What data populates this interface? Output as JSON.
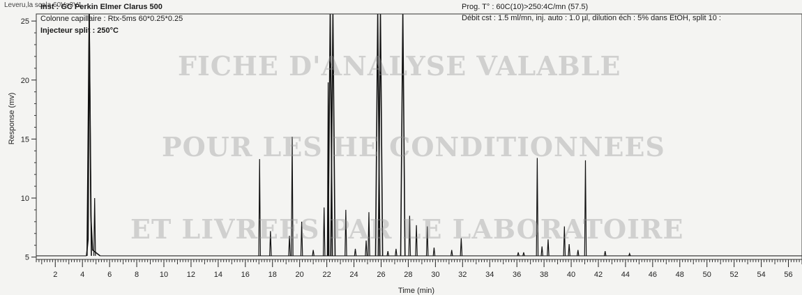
{
  "corner_label": "Leveru,la scala 60V=3V1",
  "header_left": [
    "Inst : GC Perkin Elmer Clarus 500",
    "Colonne capillaire : Rtx-5ms 60*0.25*0.25",
    "Injecteur split : 250°C"
  ],
  "header_right": [
    "Prog. T° : 60C(10)>250:4C/mn (57.5)",
    "Débit cst : 1.5 ml/mn, inj. auto : 1.0 µl, dilution éch : 5% dans EtOH, split 10 :"
  ],
  "watermark": [
    "FICHE D'ANALYSE VALABLE",
    "POUR LES HE CONDITIONNEES",
    "ET LIVREES PAR LE LABORATOIRE"
  ],
  "chart_data": {
    "type": "line",
    "xlabel": "Time (min)",
    "ylabel": "Response (mv)",
    "xlim": [
      0.6,
      57
    ],
    "ylim": [
      4.8,
      25.6
    ],
    "xticks": [
      2,
      4,
      6,
      8,
      10,
      12,
      14,
      16,
      18,
      20,
      22,
      24,
      26,
      28,
      30,
      32,
      34,
      36,
      38,
      40,
      42,
      44,
      46,
      48,
      50,
      52,
      54,
      56
    ],
    "xtick_labels": [
      "2",
      "4",
      "6",
      "8",
      "10",
      "12",
      "14",
      "16",
      "18",
      "20",
      "22",
      "24",
      "26",
      "28",
      "30",
      "32",
      "34",
      "36",
      "38",
      "40",
      "42",
      "44",
      "46",
      "48",
      "50",
      "52",
      "54",
      "56"
    ],
    "yticks": [
      5,
      10,
      15,
      20,
      25
    ],
    "ytick_labels": [
      "5",
      "10",
      "15",
      "20",
      "25"
    ],
    "baseline": 5.1,
    "peaks": [
      {
        "x": 4.5,
        "y": 26
      },
      {
        "x": 4.9,
        "y": 10
      },
      {
        "x": 17.05,
        "y": 13.3
      },
      {
        "x": 17.85,
        "y": 7.2
      },
      {
        "x": 19.25,
        "y": 6.8
      },
      {
        "x": 19.45,
        "y": 15.2
      },
      {
        "x": 20.15,
        "y": 8.0
      },
      {
        "x": 21.0,
        "y": 5.6
      },
      {
        "x": 21.8,
        "y": 9.2
      },
      {
        "x": 22.1,
        "y": 19.8
      },
      {
        "x": 22.25,
        "y": 26
      },
      {
        "x": 22.45,
        "y": 26
      },
      {
        "x": 23.4,
        "y": 9.0
      },
      {
        "x": 24.1,
        "y": 5.7
      },
      {
        "x": 24.9,
        "y": 6.4
      },
      {
        "x": 25.1,
        "y": 8.8
      },
      {
        "x": 25.75,
        "y": 26
      },
      {
        "x": 25.95,
        "y": 26
      },
      {
        "x": 26.5,
        "y": 5.5
      },
      {
        "x": 27.1,
        "y": 5.7
      },
      {
        "x": 27.6,
        "y": 26
      },
      {
        "x": 28.1,
        "y": 8.5
      },
      {
        "x": 28.6,
        "y": 7.7
      },
      {
        "x": 29.4,
        "y": 7.6
      },
      {
        "x": 29.9,
        "y": 5.8
      },
      {
        "x": 31.2,
        "y": 5.6
      },
      {
        "x": 31.9,
        "y": 6.6
      },
      {
        "x": 36.1,
        "y": 5.4
      },
      {
        "x": 36.5,
        "y": 5.4
      },
      {
        "x": 37.5,
        "y": 13.4
      },
      {
        "x": 37.85,
        "y": 5.9
      },
      {
        "x": 38.3,
        "y": 6.5
      },
      {
        "x": 39.5,
        "y": 7.6
      },
      {
        "x": 39.85,
        "y": 6.1
      },
      {
        "x": 40.5,
        "y": 5.6
      },
      {
        "x": 41.05,
        "y": 13.2
      },
      {
        "x": 42.5,
        "y": 5.5
      },
      {
        "x": 44.3,
        "y": 5.3
      }
    ],
    "grid": false
  }
}
